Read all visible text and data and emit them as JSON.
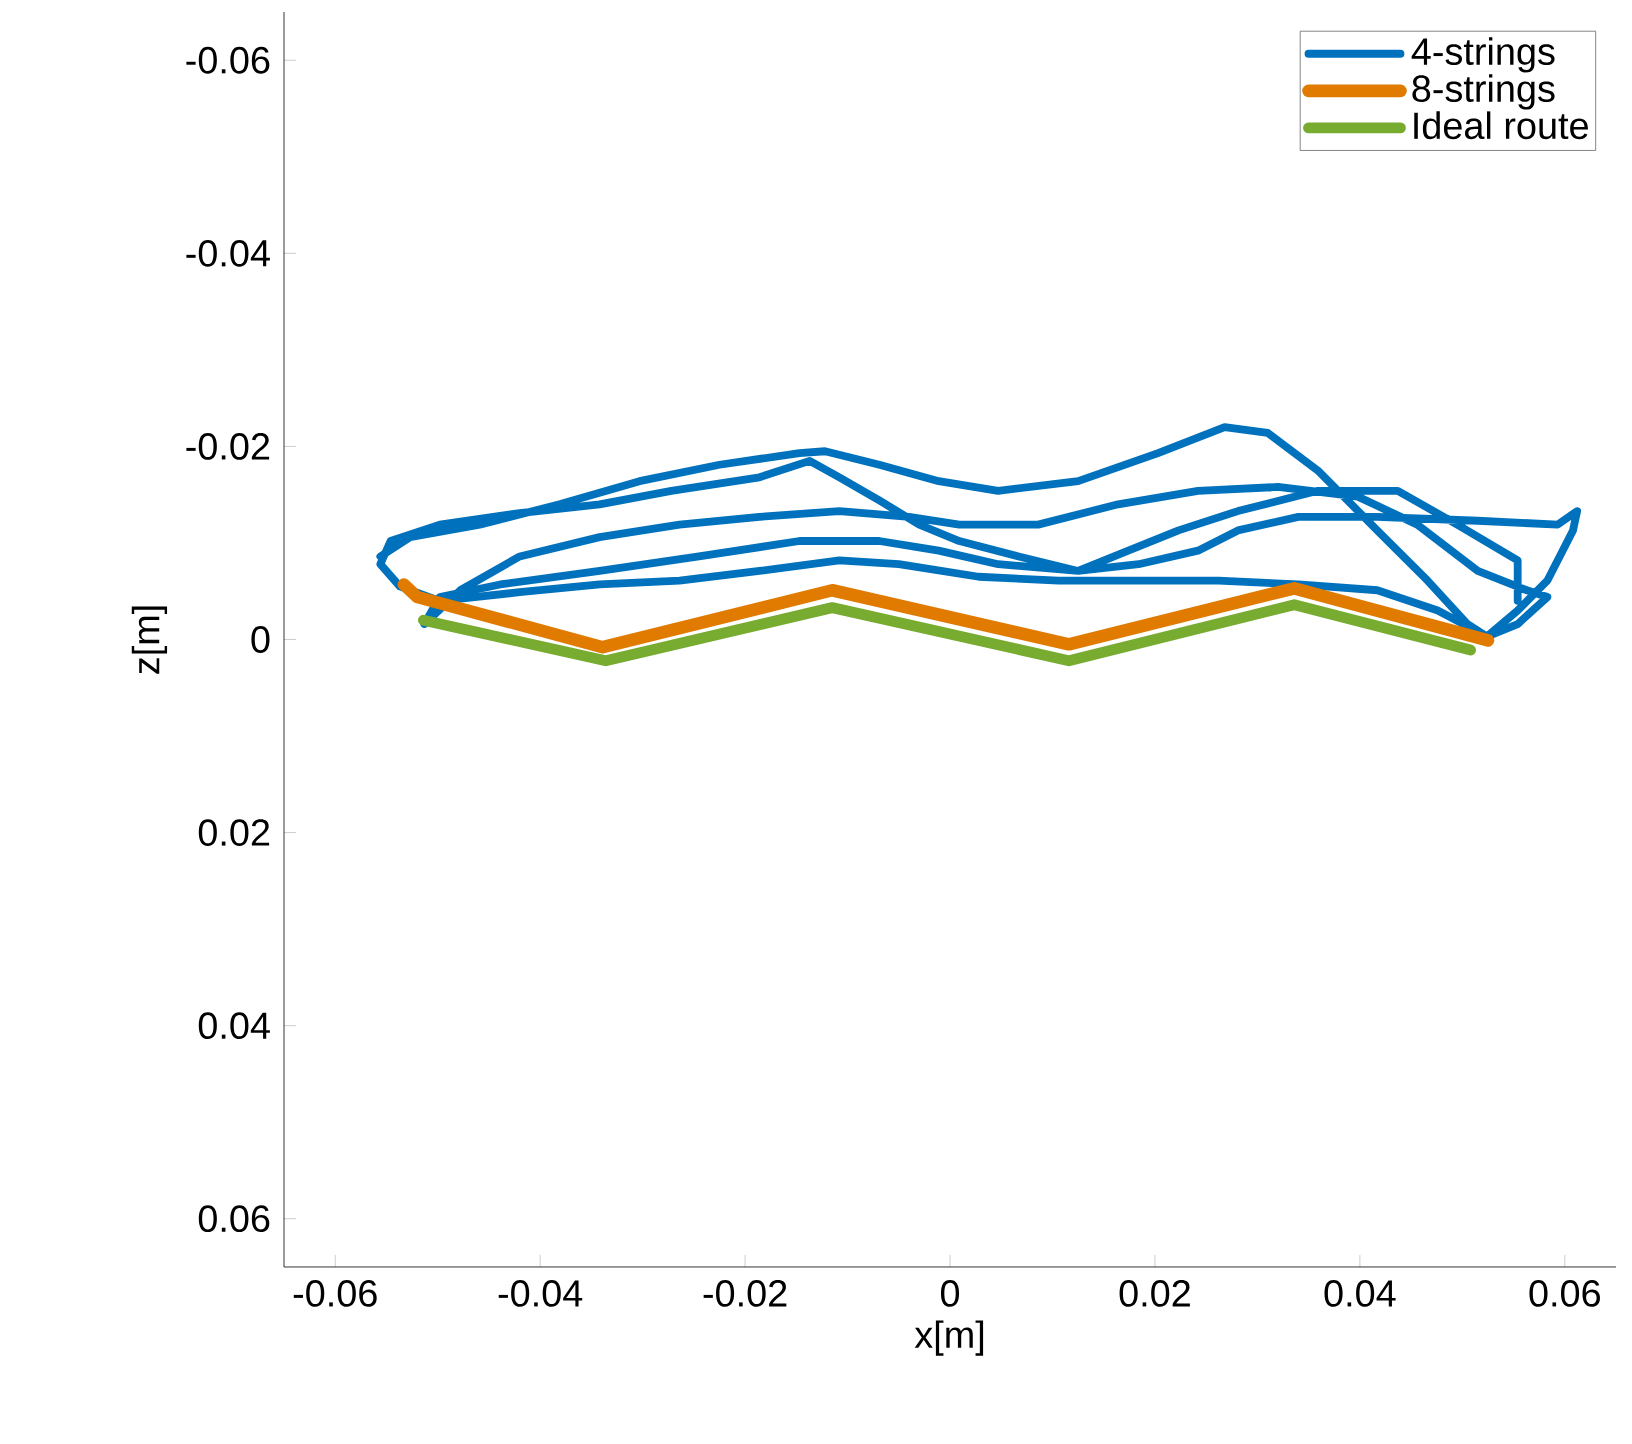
{
  "chart_data": {
    "type": "line",
    "xlabel": "x[m]",
    "ylabel": "z[m]",
    "xlim": [
      -0.065,
      0.065
    ],
    "ylim": [
      0.065,
      -0.065
    ],
    "xticks": [
      -0.06,
      -0.04,
      -0.02,
      0,
      0.02,
      0.04,
      0.06
    ],
    "yticks": [
      -0.06,
      -0.04,
      -0.02,
      0,
      0.02,
      0.04,
      0.06
    ],
    "grid": false,
    "legend": "top right",
    "marker": "none",
    "line_style": "solid",
    "series": [
      {
        "name": "4-strings",
        "color": "#0072bd",
        "x": [
          -0.0556,
          -0.0527,
          -0.0459,
          -0.0381,
          -0.0303,
          -0.0225,
          -0.0147,
          -0.0122,
          -0.0069,
          -0.0011,
          0.0047,
          0.0125,
          0.0203,
          0.0268,
          0.031,
          0.0359,
          0.0417,
          0.0466,
          0.0505,
          0.0524,
          0.0554,
          0.0583,
          0.0608,
          0.0612,
          0.0593,
          0.0515,
          0.0417,
          0.034,
          0.0281,
          0.0242,
          0.0184,
          0.0125,
          0.0047,
          -0.0011,
          -0.0069,
          -0.0147,
          -0.0245,
          -0.0342,
          -0.0439,
          -0.0498,
          -0.0513,
          -0.0478,
          -0.042,
          -0.0342,
          -0.0264,
          -0.0186,
          -0.0108,
          -0.004,
          0.0009,
          0.0086,
          0.0164,
          0.0242,
          0.032,
          0.0398,
          0.0456,
          0.0515,
          0.0563,
          0.0583,
          0.0554,
          0.0524,
          0.0476,
          0.0417,
          0.034,
          0.0262,
          0.0192,
          0.0106,
          0.0028,
          -0.005,
          -0.0108,
          -0.0186,
          -0.0264,
          -0.0342,
          -0.042,
          -0.0498,
          -0.0537,
          -0.0556,
          -0.0546,
          -0.0498,
          -0.042,
          -0.0342,
          -0.0272,
          -0.0186,
          -0.0137,
          -0.0108,
          -0.0069,
          -0.003,
          0.0009,
          0.0067,
          0.0125,
          0.0223,
          0.0281,
          0.0359,
          0.0437,
          0.0495,
          0.0554,
          0.0554
        ],
        "values": [
          -0.0086,
          -0.0106,
          -0.0119,
          -0.014,
          -0.0164,
          -0.0181,
          -0.0193,
          -0.0195,
          -0.0181,
          -0.0164,
          -0.0154,
          -0.0164,
          -0.0193,
          -0.022,
          -0.0214,
          -0.0175,
          -0.0113,
          -0.0061,
          -0.0016,
          -0.0003,
          -0.003,
          -0.0061,
          -0.0113,
          -0.0133,
          -0.0119,
          -0.0123,
          -0.0127,
          -0.0127,
          -0.0113,
          -0.0092,
          -0.0078,
          -0.0071,
          -0.0078,
          -0.0092,
          -0.0102,
          -0.0102,
          -0.0086,
          -0.0071,
          -0.0057,
          -0.0044,
          -0.0016,
          -0.0051,
          -0.0086,
          -0.0106,
          -0.0119,
          -0.0127,
          -0.0133,
          -0.0127,
          -0.0119,
          -0.0119,
          -0.014,
          -0.0154,
          -0.0158,
          -0.0148,
          -0.0119,
          -0.0071,
          -0.0051,
          -0.0044,
          -0.0016,
          -0.0003,
          -0.003,
          -0.0051,
          -0.0057,
          -0.0061,
          -0.0061,
          -0.0061,
          -0.0065,
          -0.0078,
          -0.0082,
          -0.0071,
          -0.0061,
          -0.0057,
          -0.0049,
          -0.004,
          -0.0055,
          -0.0078,
          -0.0102,
          -0.0119,
          -0.0131,
          -0.014,
          -0.0154,
          -0.0168,
          -0.0185,
          -0.0168,
          -0.0144,
          -0.0119,
          -0.0102,
          -0.0086,
          -0.0071,
          -0.0113,
          -0.0133,
          -0.0154,
          -0.0154,
          -0.0119,
          -0.0082,
          -0.004
        ]
      },
      {
        "name": "8-strings",
        "color": "#e07b00",
        "x": [
          -0.0533,
          -0.052,
          -0.0339,
          -0.0115,
          0.0116,
          0.0336,
          0.0525
        ],
        "values": [
          -0.0057,
          -0.0044,
          0.0008,
          -0.0051,
          0.0005,
          -0.0053,
          0.0001
        ]
      },
      {
        "name": "Ideal route",
        "color": "#77ac30",
        "x": [
          -0.0514,
          -0.0336,
          -0.0115,
          0.0116,
          0.0336,
          0.0508
        ],
        "values": [
          -0.002,
          0.0022,
          -0.0033,
          0.0022,
          -0.0036,
          0.0011
        ]
      }
    ]
  }
}
